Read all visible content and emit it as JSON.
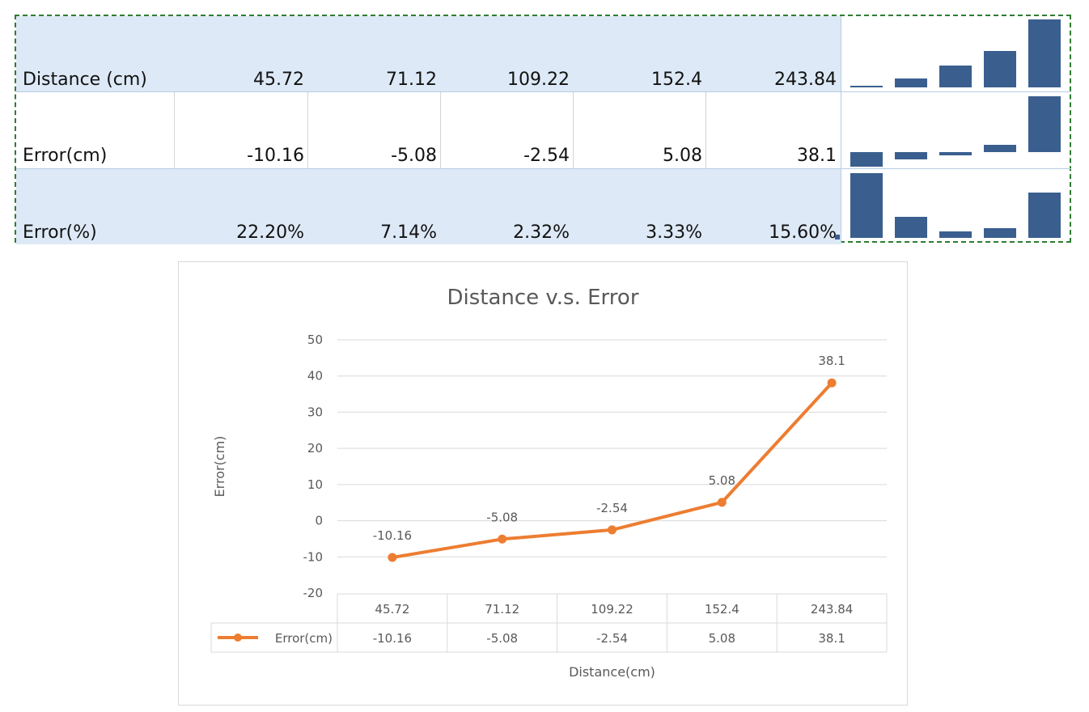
{
  "sheet": {
    "rows": [
      {
        "label": "Distance (cm)",
        "values": [
          "45.72",
          "71.12",
          "109.22",
          "152.4",
          "243.84"
        ],
        "spark": [
          45.72,
          71.12,
          109.22,
          152.4,
          243.84
        ]
      },
      {
        "label": "Error(cm)",
        "values": [
          "-10.16",
          "-5.08",
          "-2.54",
          "5.08",
          "38.1"
        ],
        "spark": [
          -10.16,
          -5.08,
          -2.54,
          5.08,
          38.1
        ]
      },
      {
        "label": "Error(%)",
        "values": [
          "22.20%",
          "7.14%",
          "2.32%",
          "3.33%",
          "15.60%"
        ],
        "spark": [
          22.2,
          7.14,
          2.32,
          3.33,
          15.6
        ]
      }
    ],
    "selection_color": "#2e7d32",
    "sparkline_color": "#3a5f8f",
    "highlight_color": "#dde9f6"
  },
  "chart_data": {
    "type": "line",
    "title": "Distance v.s. Error",
    "xlabel": "Distance(cm)",
    "ylabel": "Error(cm)",
    "categories": [
      "45.72",
      "71.12",
      "109.22",
      "152.4",
      "243.84"
    ],
    "series": [
      {
        "name": "Error(cm)",
        "values": [
          -10.16,
          -5.08,
          -2.54,
          5.08,
          38.1
        ],
        "color": "#ed7d31"
      }
    ],
    "data_labels": [
      "-10.16",
      "-5.08",
      "-2.54",
      "5.08",
      "38.1"
    ],
    "ylim": [
      -20,
      50
    ],
    "yticks": [
      50,
      40,
      30,
      20,
      10,
      0,
      -10,
      -20
    ],
    "grid": true,
    "data_table": true
  }
}
